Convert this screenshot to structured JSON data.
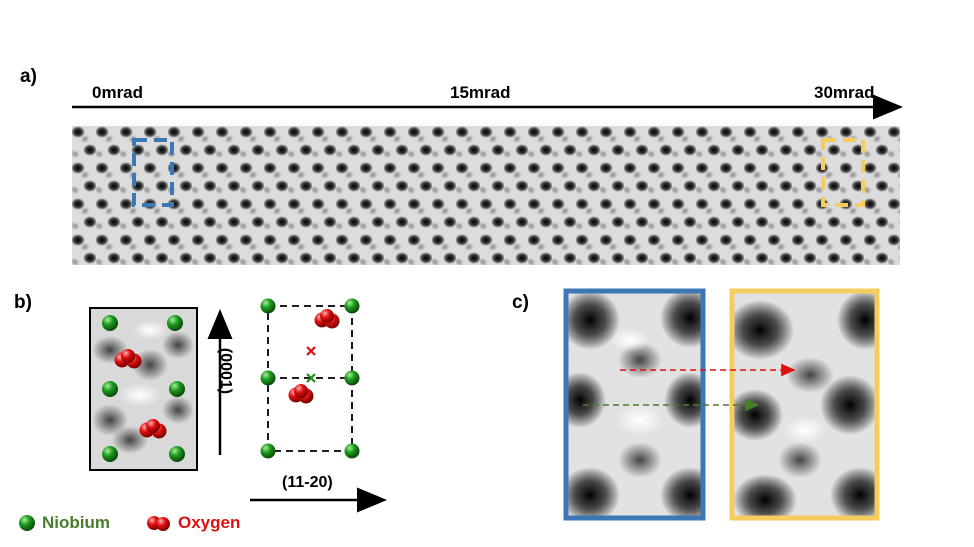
{
  "panels": {
    "a": "a)",
    "b": "b)",
    "c": "c)"
  },
  "tilt_axis": {
    "start": "0mrad",
    "mid": "15mrad",
    "end": "30mrad"
  },
  "crystal_axes": {
    "vertical": "(0001)",
    "horizontal": "(11-20)"
  },
  "legend": {
    "niobium": "Niobium",
    "oxygen": "Oxygen"
  },
  "colors": {
    "niobium": "#1f8f1f",
    "niobium_text": "#4a7d2a",
    "oxygen": "#e01010",
    "oxygen_text": "#e01010",
    "box_blue": "#3d78b4",
    "box_yellow": "#f5cd5e"
  }
}
